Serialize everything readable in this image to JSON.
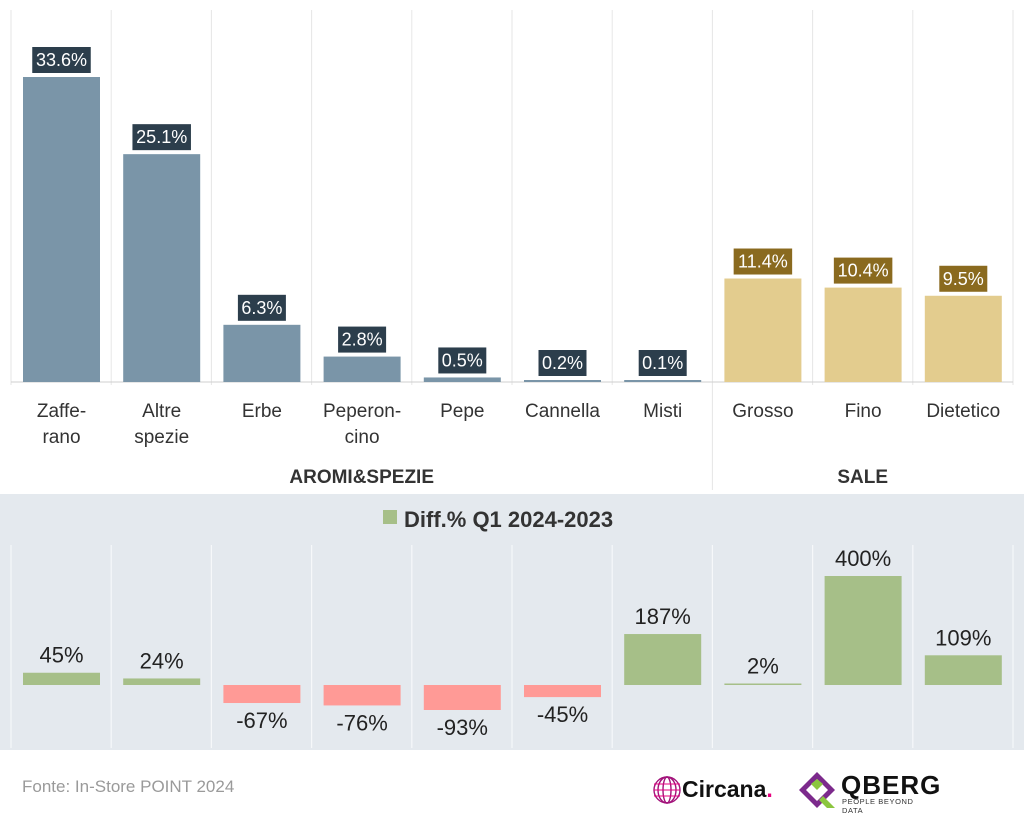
{
  "chart_data": [
    {
      "type": "bar",
      "categories": [
        "Zaffe-\nrano",
        "Altre\nspezie",
        "Erbe",
        "Peperon-\ncino",
        "Pepe",
        "Cannella",
        "Misti",
        "Grosso",
        "Fino",
        "Dietetico"
      ],
      "values": [
        33.6,
        25.1,
        6.3,
        2.8,
        0.5,
        0.2,
        0.1,
        11.4,
        10.4,
        9.5
      ],
      "value_labels": [
        "33.6%",
        "25.1%",
        "6.3%",
        "2.8%",
        "0.5%",
        "0.2%",
        "0.1%",
        "11.4%",
        "10.4%",
        "9.5%"
      ],
      "groups": [
        {
          "name": "AROMI&SPEZIE",
          "categories": 7
        },
        {
          "name": "SALE",
          "categories": 3
        }
      ],
      "ylim": [
        0,
        36
      ],
      "colors": {
        "AROMI&SPEZIE": "#7a95a8",
        "SALE": "#e3cc8e",
        "label_aromi": "#2c3e4c",
        "label_sale": "#8a6a1f"
      },
      "grid": true
    },
    {
      "type": "bar",
      "legend": "Diff.% Q1 2024-2023",
      "categories": [
        "Zaffe-\nrano",
        "Altre\nspezie",
        "Erbe",
        "Peperon-\ncino",
        "Pepe",
        "Cannella",
        "Misti",
        "Grosso",
        "Fino",
        "Dietetico"
      ],
      "values": [
        45,
        24,
        -67,
        -76,
        -93,
        -45,
        187,
        2,
        400,
        109
      ],
      "value_labels": [
        "45%",
        "24%",
        "-67%",
        "-76%",
        "-93%",
        "-45%",
        "187%",
        "2%",
        "400%",
        "109%"
      ],
      "colors": {
        "positive": "#a6bf88",
        "negative": "#ff9a96",
        "background": "#e4e9ee"
      }
    }
  ],
  "footer": {
    "source": "Fonte: In-Store POINT 2024",
    "logo_circana": "Circana",
    "logo_circana_dot": ".",
    "logo_qberg": "QBERG",
    "logo_qberg_tagline": "PEOPLE BEYOND DATA"
  }
}
